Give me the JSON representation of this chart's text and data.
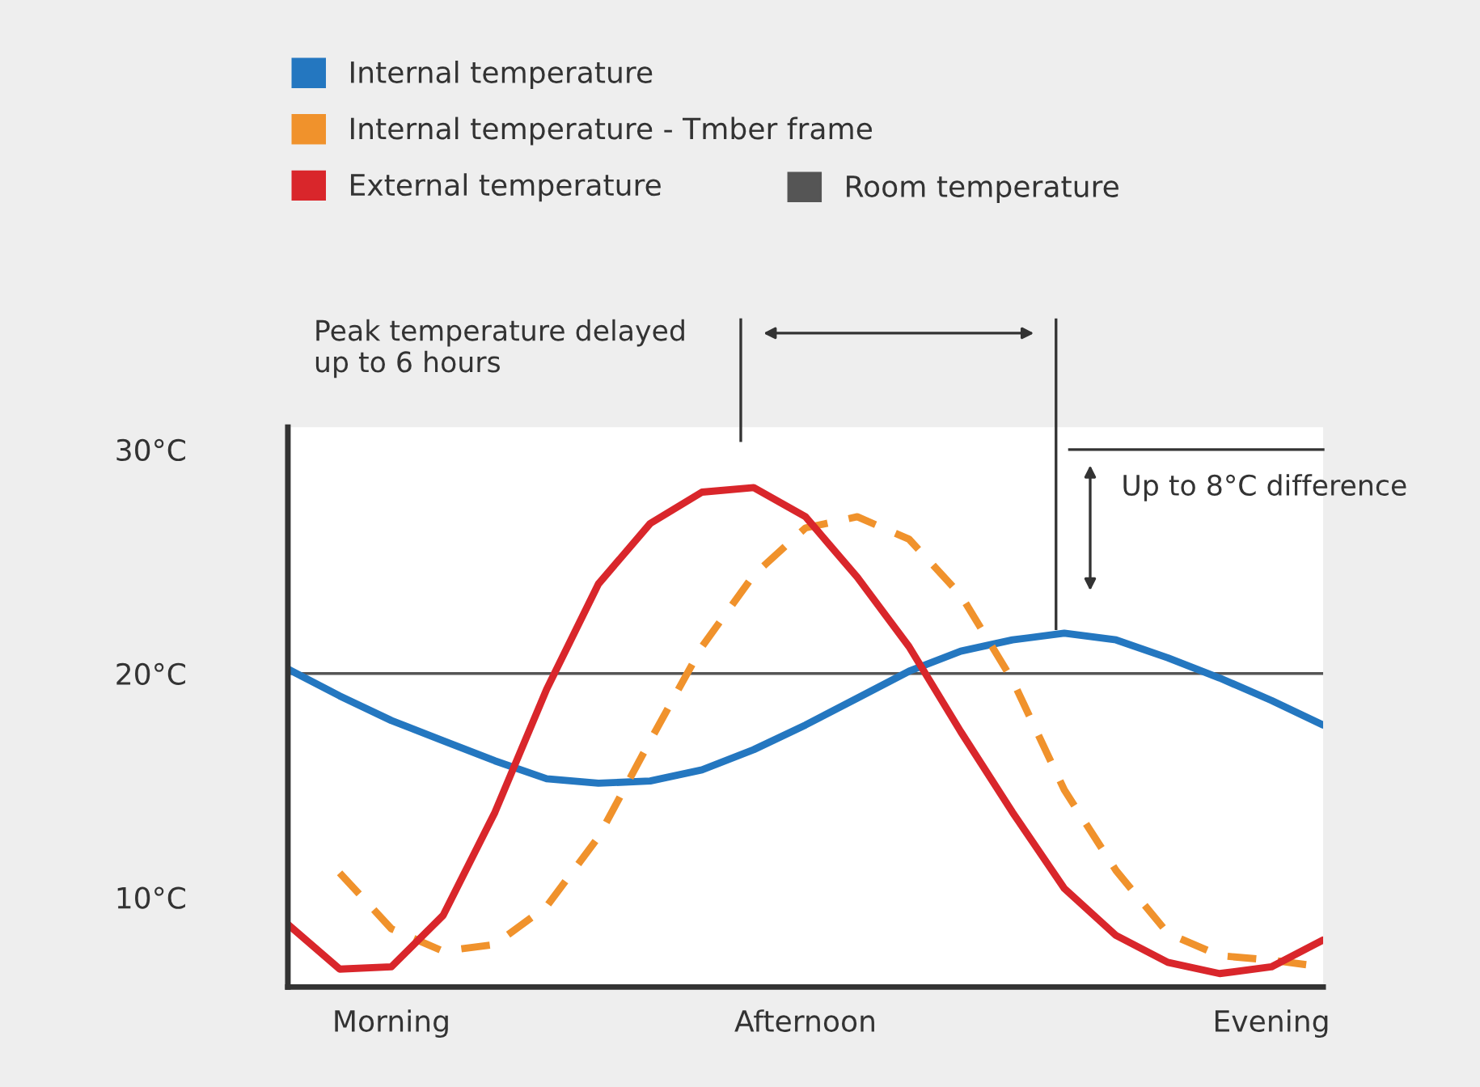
{
  "chart_data": {
    "type": "line",
    "categories": [
      null,
      null,
      "Morning",
      null,
      null,
      null,
      null,
      null,
      null,
      null,
      "Afternoon",
      null,
      null,
      null,
      null,
      null,
      null,
      null,
      null,
      "Evening",
      null
    ],
    "ylim": [
      6,
      31
    ],
    "yticks": [
      {
        "value": 10,
        "label": "10°C"
      },
      {
        "value": 20,
        "label": "20°C"
      },
      {
        "value": 30,
        "label": "30°C"
      }
    ],
    "series": [
      {
        "name": "Internal temperature",
        "color": "#2477c0",
        "line_style": "solid",
        "values": [
          20.2,
          19.0,
          17.9,
          17.0,
          16.1,
          15.3,
          15.1,
          15.2,
          15.7,
          16.6,
          17.7,
          18.9,
          20.1,
          21.0,
          21.5,
          21.8,
          21.5,
          20.7,
          19.8,
          18.8,
          17.7
        ]
      },
      {
        "name": "Internal temperature - Tmber frame",
        "color": "#f0922c",
        "line_style": "dashed",
        "values": [
          null,
          11.1,
          8.6,
          7.6,
          7.9,
          9.6,
          12.7,
          17.0,
          21.2,
          24.4,
          26.5,
          27.0,
          26.0,
          23.5,
          19.7,
          14.8,
          11.2,
          8.4,
          7.4,
          7.2,
          6.9
        ]
      },
      {
        "name": "External temperature",
        "color": "#d9262b",
        "line_style": "solid",
        "values": [
          8.8,
          6.8,
          6.9,
          9.2,
          13.8,
          19.3,
          24.0,
          26.7,
          28.1,
          28.3,
          27.0,
          24.3,
          21.2,
          17.4,
          13.8,
          10.4,
          8.3,
          7.1,
          6.6,
          6.9,
          8.1
        ]
      }
    ],
    "ref_lines": [
      {
        "axis": "y",
        "value": 20,
        "label": "Room temperature",
        "color": "#555555"
      }
    ],
    "annotations": [
      "Peak temperature delayed\nup to 6 hours",
      "Up to 8°C difference"
    ],
    "legend": "top",
    "grid": false,
    "marker": "none"
  }
}
